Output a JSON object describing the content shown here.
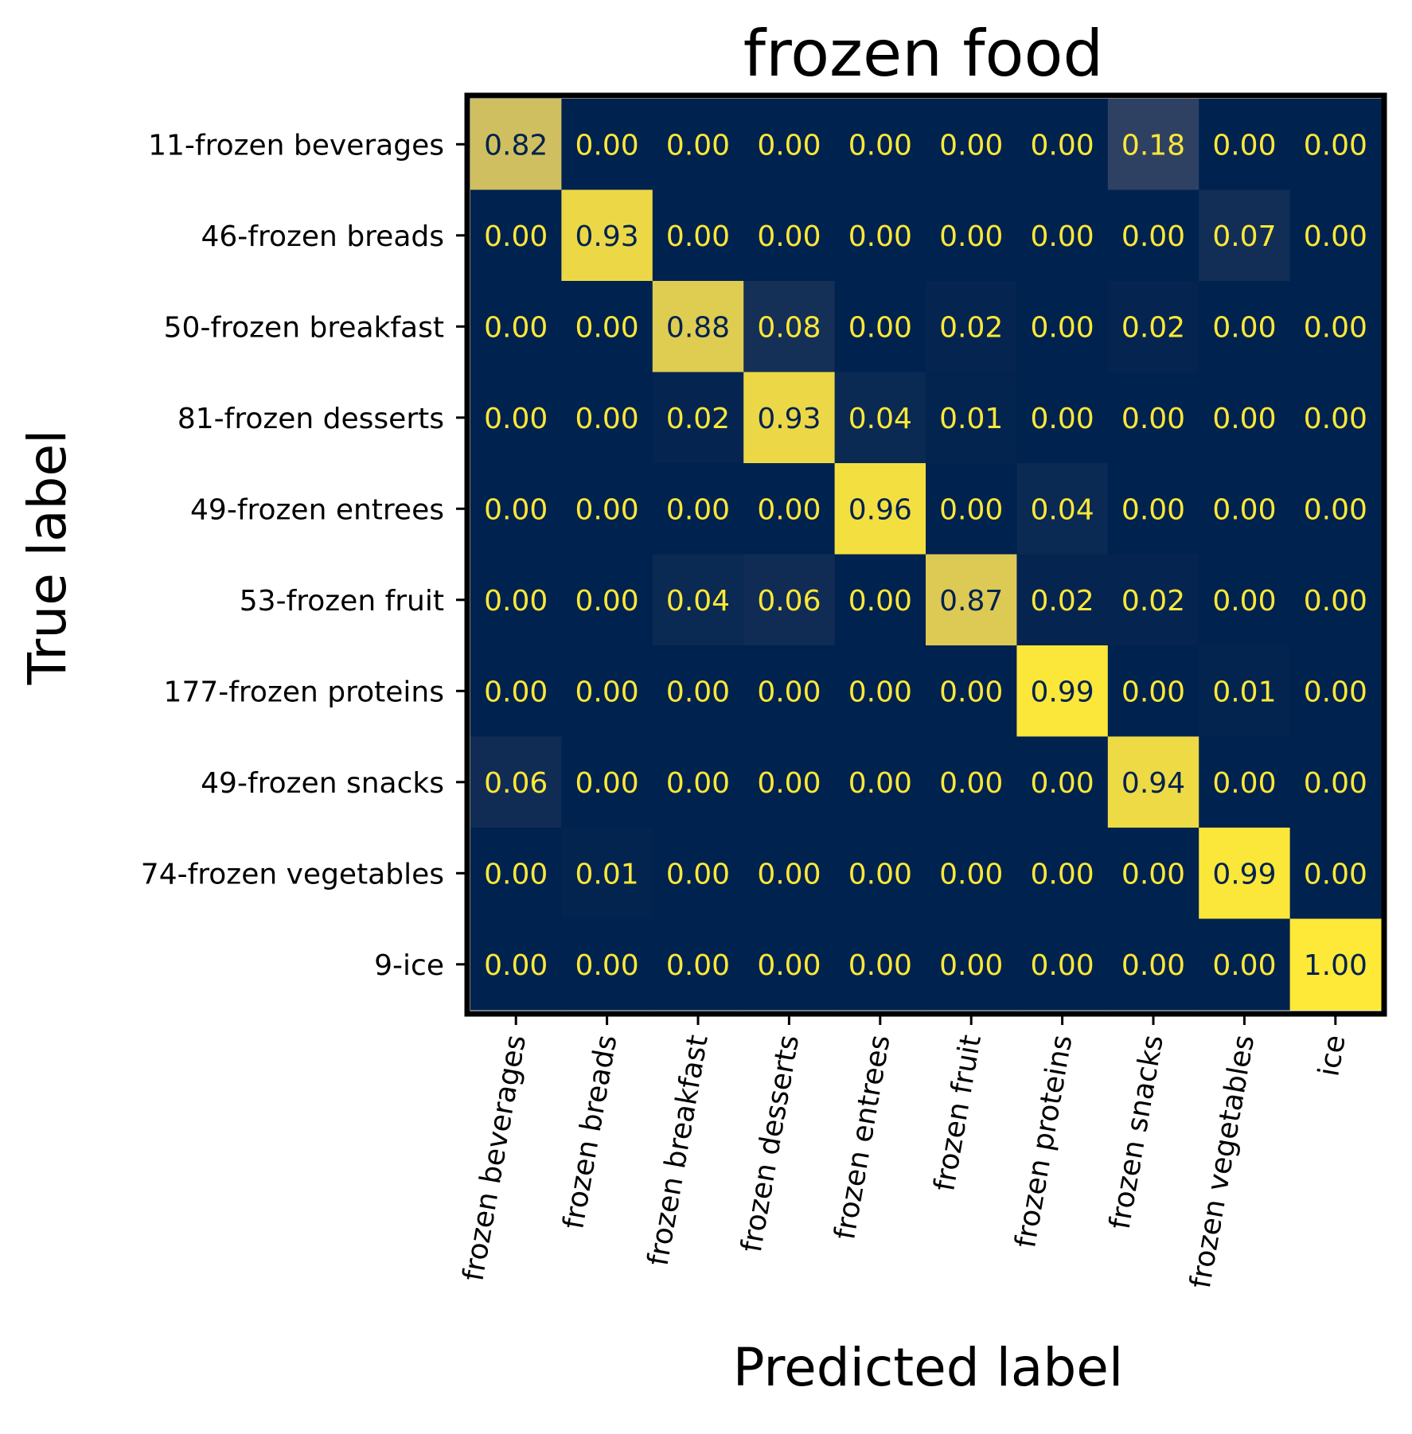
{
  "chart_data": {
    "type": "heatmap",
    "title": "frozen food",
    "xlabel": "Predicted label",
    "ylabel": "True label",
    "row_labels": [
      "11-frozen beverages",
      "46-frozen breads",
      "50-frozen breakfast",
      "81-frozen desserts",
      "49-frozen entrees",
      "53-frozen fruit",
      "177-frozen proteins",
      "49-frozen snacks",
      "74-frozen vegetables",
      "9-ice"
    ],
    "col_labels": [
      "frozen beverages",
      "frozen breads",
      "frozen breakfast",
      "frozen desserts",
      "frozen entrees",
      "frozen fruit",
      "frozen proteins",
      "frozen snacks",
      "frozen vegetables",
      "ice"
    ],
    "matrix": [
      [
        0.82,
        0.0,
        0.0,
        0.0,
        0.0,
        0.0,
        0.0,
        0.18,
        0.0,
        0.0
      ],
      [
        0.0,
        0.93,
        0.0,
        0.0,
        0.0,
        0.0,
        0.0,
        0.0,
        0.07,
        0.0
      ],
      [
        0.0,
        0.0,
        0.88,
        0.08,
        0.0,
        0.02,
        0.0,
        0.02,
        0.0,
        0.0
      ],
      [
        0.0,
        0.0,
        0.02,
        0.93,
        0.04,
        0.01,
        0.0,
        0.0,
        0.0,
        0.0
      ],
      [
        0.0,
        0.0,
        0.0,
        0.0,
        0.96,
        0.0,
        0.04,
        0.0,
        0.0,
        0.0
      ],
      [
        0.0,
        0.0,
        0.04,
        0.06,
        0.0,
        0.87,
        0.02,
        0.02,
        0.0,
        0.0
      ],
      [
        0.0,
        0.0,
        0.0,
        0.0,
        0.0,
        0.0,
        0.99,
        0.0,
        0.01,
        0.0
      ],
      [
        0.06,
        0.0,
        0.0,
        0.0,
        0.0,
        0.0,
        0.0,
        0.94,
        0.0,
        0.0
      ],
      [
        0.0,
        0.01,
        0.0,
        0.0,
        0.0,
        0.0,
        0.0,
        0.0,
        0.99,
        0.0
      ],
      [
        0.0,
        0.0,
        0.0,
        0.0,
        0.0,
        0.0,
        0.0,
        0.0,
        0.0,
        1.0
      ]
    ],
    "value_format": "2 decimals",
    "colormap": "cividis",
    "vlim": [
      0,
      1
    ],
    "colorbar": false,
    "grid": false,
    "colors": {
      "low": "#00224e",
      "high": "#fee838",
      "text_on_dark": "#fee838",
      "text_on_light": "#00224e"
    }
  }
}
